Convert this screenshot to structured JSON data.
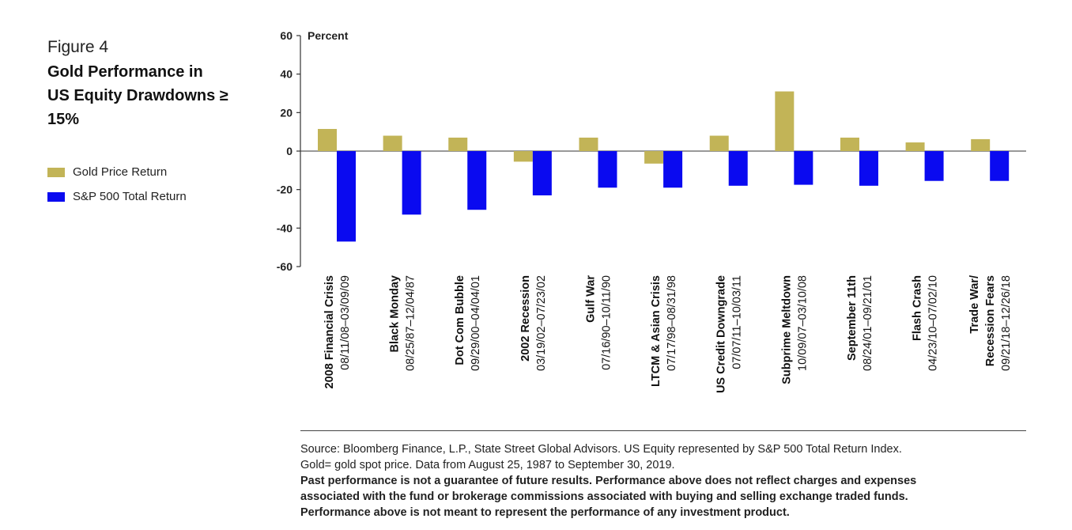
{
  "figure": {
    "label": "Figure 4",
    "title": "Gold Performance in US Equity Drawdowns ≥ 15%"
  },
  "legend": {
    "gold": "Gold Price Return",
    "sp": "S&P 500 Total Return"
  },
  "colors": {
    "gold": "#c2b457",
    "sp": "#0a0af0",
    "axis": "#333333"
  },
  "chart_data": {
    "type": "bar",
    "ylabel": "Percent",
    "ylim": [
      -60,
      60
    ],
    "yticks": [
      60,
      40,
      20,
      0,
      -20,
      -40,
      -60
    ],
    "categories": [
      {
        "name": "2008 Financial Crisis",
        "dates": "08/11/08–03/09/09"
      },
      {
        "name": "Black  Monday",
        "dates": "08/25/87–12/04/87"
      },
      {
        "name": "Dot Com Bubble",
        "dates": "09/29/00–04/04/01"
      },
      {
        "name": "2002 Recession",
        "dates": "03/19/02–07/23/02"
      },
      {
        "name": "Gulf War",
        "dates": "07/16/90–10/11/90"
      },
      {
        "name": "LTCM  & Asian Crisis",
        "dates": "07/17/98–08/31/98"
      },
      {
        "name": "US Credit Downgrade",
        "dates": "07/07/11–10/03/11"
      },
      {
        "name": "Subprime Meltdown",
        "dates": "10/09/07–03/10/08"
      },
      {
        "name": "September  11th",
        "dates": "08/24/01–09/21/01"
      },
      {
        "name": "Flash Crash",
        "dates": "04/23/10–07/02/10"
      },
      {
        "name": "Trade War/",
        "name2": "Recession Fears",
        "dates": "09/21/18–12/26/18"
      }
    ],
    "series": [
      {
        "name": "Gold Price Return",
        "values": [
          11.5,
          8,
          7,
          5.5,
          7,
          6.5,
          8,
          31,
          7,
          4.5,
          6.2
        ],
        "signs": [
          1,
          1,
          1,
          -1,
          1,
          -1,
          1,
          1,
          1,
          1,
          1
        ]
      },
      {
        "name": "S&P 500 Total Return",
        "values": [
          -47,
          -33,
          -30.5,
          -23,
          -19,
          -19,
          -18,
          -17.5,
          -18,
          -15.5,
          -15.5
        ]
      }
    ]
  },
  "footer": {
    "source_line1": "Source: Bloomberg Finance, L.P., State Street Global Advisors. US Equity represented by S&P 500 Total Return Index.",
    "source_line2": "Gold= gold spot price. Data from August 25, 1987 to September 30, 2019.",
    "note_line1": "Past performance is not a guarantee of future results. Performance above does not reflect charges and expenses",
    "note_line2": "associated with the fund or brokerage commissions associated with buying and selling exchange traded funds.",
    "note_line3": "Performance above is not meant to represent the performance of any investment product."
  }
}
